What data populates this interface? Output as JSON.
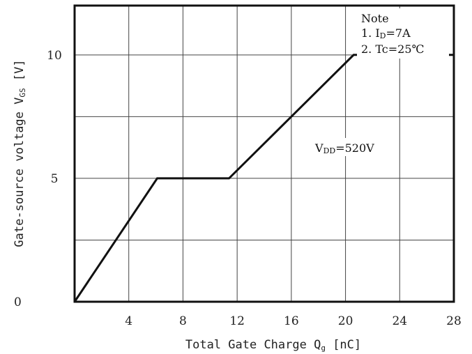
{
  "chart_data": {
    "type": "line",
    "title": "",
    "xlabel": "Total Gate Charge Qg [nC]",
    "ylabel": "Gate-source voltage VGS [V]",
    "xlabel_parts": {
      "main": "Total Gate Charge Q",
      "sub": "g",
      "unit": " [nC]"
    },
    "ylabel_parts": {
      "main": "Gate-source voltage V",
      "sub": "GS",
      "unit": " [V]"
    },
    "xlim": [
      0,
      28
    ],
    "ylim": [
      0,
      12
    ],
    "x_ticks": [
      4,
      8,
      12,
      16,
      20,
      24,
      28
    ],
    "y_ticks": [
      0,
      5,
      10
    ],
    "grid": true,
    "series": [
      {
        "x": [
          0,
          6.1,
          11.4,
          20.6,
          28
        ],
        "y": [
          0,
          5,
          5,
          10,
          10
        ]
      }
    ],
    "annotations": {
      "vdd": {
        "prefix": "V",
        "sub": "DD",
        "value": "=520V"
      },
      "note_title": "Note",
      "note_1": {
        "prefix": "1. I",
        "sub": "D",
        "value": "=7A"
      },
      "note_2": {
        "prefix": "2. Tc",
        "value": "=25℃"
      }
    }
  }
}
